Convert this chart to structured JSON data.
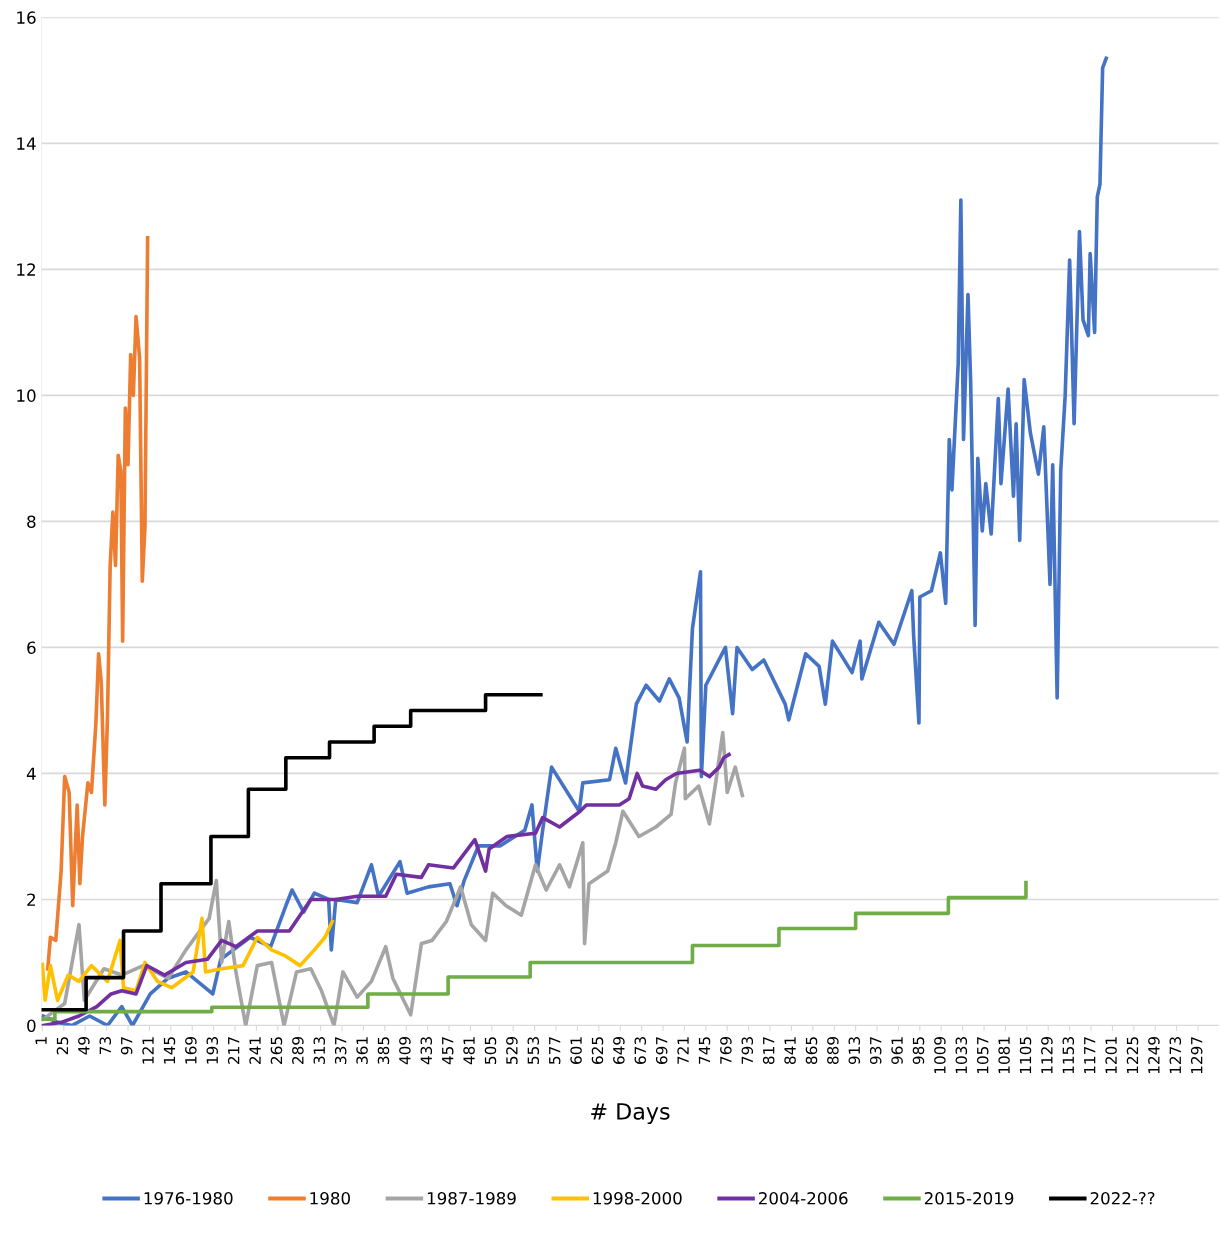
{
  "chart_data": {
    "type": "line",
    "xlabel": "# Days",
    "xlim": [
      0,
      1320
    ],
    "xticks": [
      1,
      25,
      49,
      73,
      97,
      121,
      145,
      169,
      193,
      217,
      241,
      265,
      289,
      313,
      337,
      361,
      385,
      409,
      433,
      457,
      481,
      505,
      529,
      553,
      577,
      601,
      625,
      649,
      673,
      697,
      721,
      745,
      769,
      793,
      817,
      841,
      865,
      889,
      913,
      937,
      961,
      985,
      1009,
      1033,
      1057,
      1081,
      1105,
      1129,
      1153,
      1177,
      1201,
      1225,
      1249,
      1273,
      1297
    ],
    "ylim": [
      0,
      16
    ],
    "yticks": [
      0,
      2,
      4,
      6,
      8,
      10,
      12,
      14,
      16
    ],
    "grid": "y",
    "legend": "bottom",
    "marker": "none",
    "line_style": "solid",
    "series": [
      {
        "name": "1976-1980",
        "color": "#4472c4",
        "x": [
          2,
          18,
          34,
          54,
          74,
          90,
          102,
          122,
          142,
          162,
          192,
          201,
          234,
          257,
          274,
          281,
          294,
          306,
          322,
          325,
          330,
          354,
          370,
          378,
          402,
          410,
          434,
          458,
          466,
          474,
          490,
          514,
          542,
          550,
          556,
          562,
          572,
          603,
          607,
          637,
          644,
          655,
          667,
          678,
          693,
          704,
          715,
          724,
          730,
          739,
          740,
          745,
          767,
          775,
          780,
          797,
          810,
          834,
          838,
          857,
          872,
          879,
          887,
          909,
          918,
          920,
          939,
          956,
          976,
          978,
          984,
          985,
          998,
          1008,
          1014,
          1018,
          1021,
          1028,
          1031,
          1034,
          1039,
          1042,
          1047,
          1050,
          1055,
          1059,
          1065,
          1073,
          1076,
          1084,
          1090,
          1093,
          1097,
          1102,
          1109,
          1118,
          1124,
          1131,
          1134,
          1139,
          1143,
          1148,
          1153,
          1158,
          1164,
          1168,
          1174,
          1176,
          1181,
          1184,
          1187,
          1190,
          1194
        ],
        "values": [
          0.15,
          0.05,
          0.0,
          0.15,
          0.0,
          0.3,
          0.0,
          0.5,
          0.75,
          0.85,
          0.5,
          1.05,
          1.4,
          1.25,
          1.9,
          2.15,
          1.8,
          2.1,
          2.0,
          1.2,
          2.0,
          1.95,
          2.55,
          2.05,
          2.6,
          2.1,
          2.2,
          2.25,
          1.9,
          2.3,
          2.85,
          2.85,
          3.1,
          3.5,
          2.45,
          3.1,
          4.1,
          3.4,
          3.85,
          3.9,
          4.4,
          3.85,
          5.1,
          5.4,
          5.15,
          5.5,
          5.2,
          4.5,
          6.3,
          7.2,
          3.95,
          5.4,
          6.0,
          4.95,
          6.0,
          5.65,
          5.8,
          5.1,
          4.85,
          5.9,
          5.7,
          5.1,
          6.1,
          5.6,
          6.1,
          5.5,
          6.4,
          6.05,
          6.9,
          6.2,
          4.8,
          6.8,
          6.9,
          7.5,
          6.7,
          9.3,
          8.5,
          10.5,
          13.1,
          9.3,
          11.6,
          10.2,
          6.35,
          9.0,
          7.85,
          8.6,
          7.8,
          9.95,
          8.6,
          10.1,
          8.4,
          9.55,
          7.7,
          10.25,
          9.4,
          8.75,
          9.5,
          7.0,
          8.9,
          5.2,
          8.8,
          10.0,
          12.15,
          9.55,
          12.6,
          11.2,
          10.95,
          12.25,
          11.0,
          13.15,
          13.35,
          15.2,
          15.35
        ]
      },
      {
        "name": "1980",
        "color": "#ed7d31",
        "x": [
          7,
          10,
          16,
          22,
          26,
          31,
          35,
          40,
          43,
          46,
          52,
          56,
          61,
          64,
          67,
          71,
          74,
          77,
          80,
          83,
          86,
          89,
          91,
          94,
          97,
          100,
          103,
          106,
          110,
          113,
          116,
          119
        ],
        "values": [
          0.9,
          1.4,
          1.35,
          2.45,
          3.95,
          3.7,
          1.9,
          3.5,
          2.25,
          3.0,
          3.85,
          3.7,
          4.8,
          5.9,
          5.45,
          3.5,
          4.9,
          7.3,
          8.15,
          7.3,
          9.05,
          8.8,
          6.1,
          9.8,
          8.9,
          10.65,
          10.0,
          11.25,
          10.6,
          7.05,
          7.9,
          12.5
        ]
      },
      {
        "name": "1987-1989",
        "color": "#a5a5a5",
        "x": [
          2,
          26,
          42,
          48,
          70,
          90,
          114,
          142,
          162,
          188,
          196,
          202,
          210,
          218,
          229,
          242,
          258,
          272,
          286,
          302,
          314,
          328,
          338,
          354,
          370,
          386,
          394,
          414,
          426,
          438,
          454,
          470,
          482,
          498,
          506,
          521,
          538,
          554,
          566,
          581,
          592,
          607,
          609,
          614,
          635,
          644,
          652,
          670,
          689,
          706,
          711,
          721,
          722,
          737,
          749,
          756,
          764,
          769,
          778,
          786
        ],
        "values": [
          0.1,
          0.35,
          1.6,
          0.4,
          0.9,
          0.8,
          0.95,
          0.75,
          1.2,
          1.7,
          2.3,
          1.0,
          1.65,
          0.85,
          0.0,
          0.95,
          1.0,
          0.0,
          0.85,
          0.9,
          0.55,
          0.0,
          0.85,
          0.45,
          0.7,
          1.25,
          0.75,
          0.17,
          1.3,
          1.35,
          1.65,
          2.2,
          1.6,
          1.35,
          2.1,
          1.9,
          1.75,
          2.55,
          2.15,
          2.55,
          2.2,
          2.9,
          1.3,
          2.25,
          2.45,
          2.9,
          3.4,
          3.0,
          3.15,
          3.35,
          3.85,
          4.4,
          3.6,
          3.8,
          3.2,
          3.85,
          4.65,
          3.7,
          4.1,
          3.65
        ]
      },
      {
        "name": "1998-2000",
        "color": "#ffc000",
        "x": [
          1,
          4,
          10,
          18,
          30,
          42,
          56,
          74,
          88,
          92,
          106,
          116,
          130,
          146,
          170,
          180,
          184,
          202,
          226,
          242,
          258,
          274,
          290,
          306,
          318,
          326
        ],
        "values": [
          0.97,
          0.4,
          0.95,
          0.4,
          0.8,
          0.7,
          0.95,
          0.7,
          1.35,
          0.6,
          0.55,
          1.0,
          0.7,
          0.6,
          0.85,
          1.7,
          0.85,
          0.9,
          0.95,
          1.4,
          1.2,
          1.1,
          0.95,
          1.2,
          1.4,
          1.65
        ]
      },
      {
        "name": "2004-2006",
        "color": "#7030a0",
        "x": [
          2,
          22,
          42,
          62,
          78,
          90,
          106,
          118,
          138,
          162,
          186,
          202,
          218,
          242,
          278,
          302,
          330,
          354,
          386,
          398,
          426,
          434,
          462,
          486,
          498,
          502,
          522,
          554,
          562,
          581,
          604,
          611,
          648,
          659,
          668,
          674,
          689,
          700,
          712,
          738,
          749,
          760,
          765,
          771
        ],
        "values": [
          0.0,
          0.05,
          0.15,
          0.3,
          0.5,
          0.55,
          0.5,
          0.95,
          0.8,
          1.0,
          1.05,
          1.35,
          1.25,
          1.5,
          1.5,
          2.0,
          2.0,
          2.05,
          2.05,
          2.4,
          2.35,
          2.55,
          2.5,
          2.95,
          2.45,
          2.8,
          3.0,
          3.05,
          3.3,
          3.15,
          3.4,
          3.5,
          3.5,
          3.6,
          4.0,
          3.8,
          3.75,
          3.9,
          4.0,
          4.05,
          3.95,
          4.1,
          4.25,
          4.3
        ]
      },
      {
        "name": "2015-2019",
        "color": "#70ad47",
        "type": "step",
        "x": [
          1,
          15,
          191,
          366,
          456,
          548,
          730,
          827,
          913,
          1017,
          1103,
          1104
        ],
        "values": [
          0.1,
          0.22,
          0.29,
          0.5,
          0.77,
          1.0,
          1.27,
          1.54,
          1.78,
          2.03,
          2.03,
          2.27
        ]
      },
      {
        "name": "2022-??",
        "color": "#000000",
        "type": "step",
        "x": [
          1,
          50,
          92,
          134,
          190,
          232,
          274,
          323,
          373,
          414,
          498,
          560
        ],
        "values": [
          0.25,
          0.76,
          1.5,
          2.25,
          3.0,
          3.75,
          4.25,
          4.5,
          4.75,
          5.0,
          5.25,
          5.25
        ]
      }
    ]
  }
}
